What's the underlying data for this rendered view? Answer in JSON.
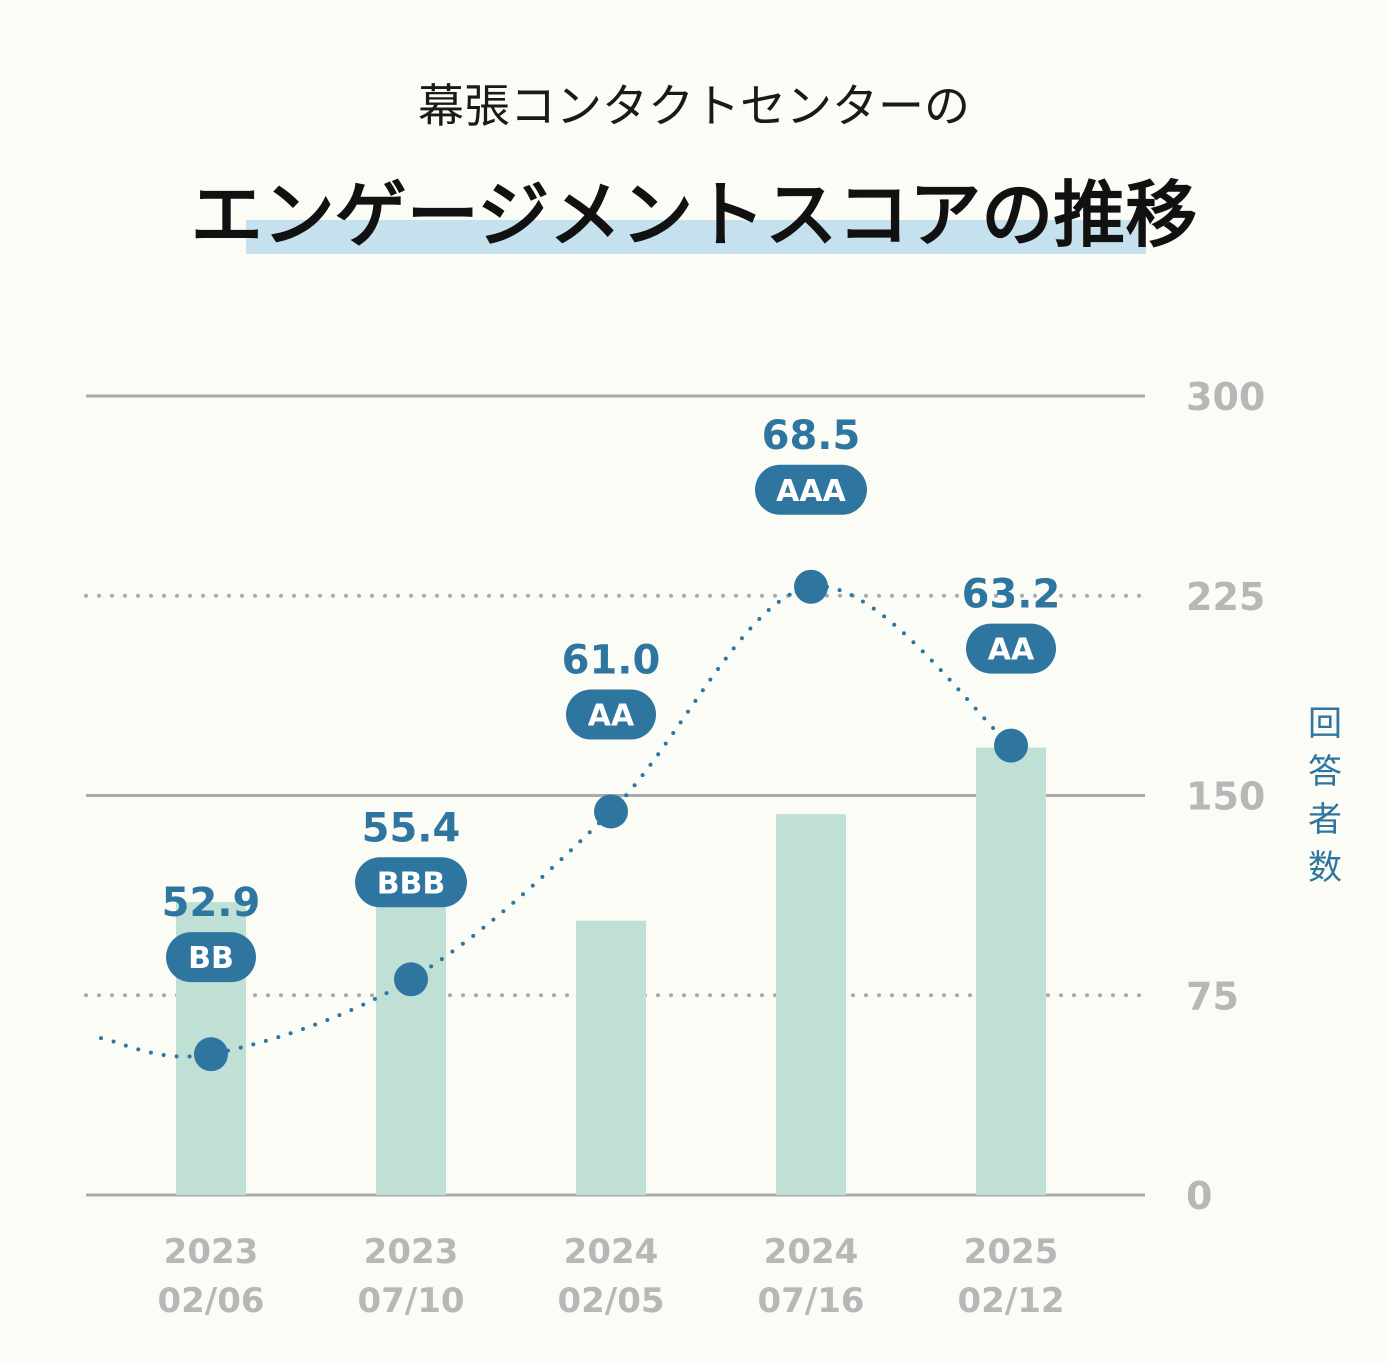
{
  "header": {
    "subtitle": "幕張コンタクトセンターの",
    "title": "エンゲージメントスコアの推移"
  },
  "colors": {
    "bar": "#c0e0d6",
    "line": "#2e76a0",
    "grid": "#aaaaaa",
    "tick": "#b7b7b7",
    "highlight": "#c6e1ee",
    "background": "#fcfcf7"
  },
  "chart_data": {
    "type": "bar+line",
    "categories": [
      {
        "year": "2023",
        "date": "02/06"
      },
      {
        "year": "2023",
        "date": "07/10"
      },
      {
        "year": "2024",
        "date": "02/05"
      },
      {
        "year": "2024",
        "date": "07/16"
      },
      {
        "year": "2025",
        "date": "02/12"
      }
    ],
    "bars": {
      "name": "回答者数",
      "values": [
        110,
        112,
        103,
        143,
        168
      ]
    },
    "scores": {
      "labels": [
        "52.9",
        "55.4",
        "61.0",
        "68.5",
        "63.2"
      ],
      "values": [
        52.9,
        55.4,
        61.0,
        68.5,
        63.2
      ],
      "grades": [
        "BB",
        "BBB",
        "AA",
        "AAA",
        "AA"
      ]
    },
    "y_axis": {
      "label": "回答者数",
      "ticks": [
        "300",
        "225",
        "150",
        "75",
        "0"
      ],
      "tick_values": [
        300,
        225,
        150,
        75,
        0
      ],
      "range": [
        0,
        300
      ],
      "solid_ticks": [
        300,
        150,
        0
      ],
      "dotted_ticks": [
        225,
        75
      ],
      "position": "right"
    },
    "score_axis_range": [
      48,
      75
    ]
  }
}
